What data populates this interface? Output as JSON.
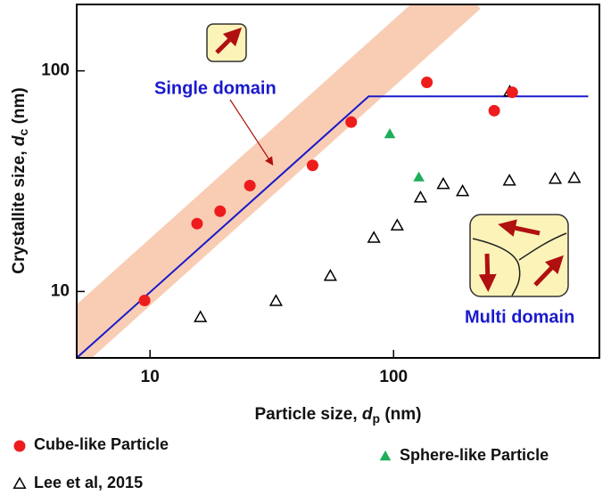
{
  "chart_data": {
    "type": "scatter",
    "xlabel": {
      "text": "Particle size, ",
      "symbol": "d",
      "subscript": "p",
      "unit": " (nm)"
    },
    "ylabel": {
      "text": "Crystallite size, ",
      "symbol": "d",
      "subscript": "c",
      "unit": " (nm)"
    },
    "log_x": true,
    "log_y": true,
    "xlim": [
      5,
      700
    ],
    "ylim": [
      5,
      200
    ],
    "xticks": [
      10,
      100
    ],
    "yticks": [
      10,
      100
    ],
    "annotations": [
      "Single domain",
      "Multi domain"
    ],
    "series": [
      {
        "name": "Cube-like Particle",
        "marker": "circle",
        "color": "#ee1c1c",
        "x": [
          9.5,
          15.6,
          19.4,
          25.7,
          46.5,
          67,
          137,
          259,
          307
        ],
        "values": [
          9.1,
          20.3,
          23.1,
          30.2,
          37.3,
          58.6,
          88.7,
          66,
          80
        ]
      },
      {
        "name": "Sphere-like Particle",
        "marker": "triangle",
        "color": "#1fae5a",
        "x": [
          96.5,
          127
        ],
        "values": [
          51.5,
          32.8
        ]
      },
      {
        "name": "Lee et al, 2015",
        "marker": "triangle-open",
        "color": "#000000",
        "x": [
          16.1,
          32.9,
          55,
          83,
          103.5,
          129,
          160,
          192,
          299,
          300,
          461,
          552
        ],
        "values": [
          7.6,
          9.0,
          11.7,
          17.4,
          19.8,
          26.5,
          30.5,
          28.3,
          31.6,
          80,
          32.2,
          32.5
        ]
      }
    ],
    "fit_line": {
      "color": "#1a1acc",
      "x": [
        5,
        79,
        630
      ],
      "values": [
        5,
        76.6,
        76.6
      ]
    }
  }
}
